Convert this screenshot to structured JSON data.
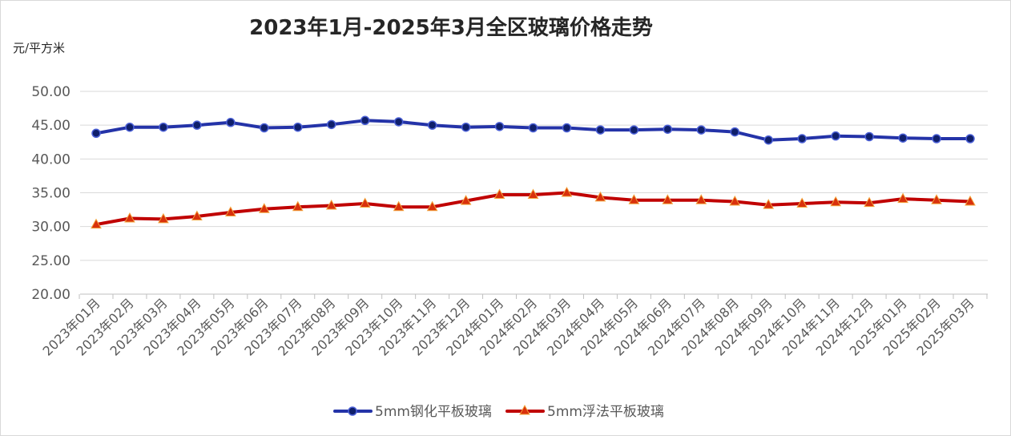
{
  "chart_data": {
    "type": "line",
    "title": "2023年1月-2025年3月全区玻璃价格走势",
    "ylabel": "元/平方米",
    "xlabel": "",
    "ylim": [
      20,
      50
    ],
    "yticks": [
      "20.00",
      "25.00",
      "30.00",
      "35.00",
      "40.00",
      "45.00",
      "50.00"
    ],
    "ytick_values": [
      20,
      25,
      30,
      35,
      40,
      45,
      50
    ],
    "grid": "horizontal",
    "legend": "bottom-center",
    "categories": [
      "2023年01月",
      "2023年02月",
      "2023年03月",
      "2023年04月",
      "2023年05月",
      "2023年06月",
      "2023年07月",
      "2023年08月",
      "2023年09月",
      "2023年10月",
      "2023年11月",
      "2023年12月",
      "2024年01月",
      "2024年02月",
      "2024年03月",
      "2024年04月",
      "2024年05月",
      "2024年06月",
      "2024年07月",
      "2024年08月",
      "2024年09月",
      "2024年10月",
      "2024年11月",
      "2024年12月",
      "2025年01月",
      "2025年02月",
      "2025年03月"
    ],
    "series": [
      {
        "name": "5mm钢化平板玻璃",
        "color": "#2433a8",
        "marker": "circle",
        "marker_fill": "#0f1f6b",
        "marker_stroke": "#4a5fd6",
        "values": [
          43.8,
          44.7,
          44.7,
          45.0,
          45.4,
          44.6,
          44.7,
          45.1,
          45.7,
          45.5,
          45.0,
          44.7,
          44.8,
          44.6,
          44.6,
          44.3,
          44.3,
          44.4,
          44.3,
          44.0,
          42.8,
          43.0,
          43.4,
          43.3,
          43.1,
          43.0,
          43.0
        ]
      },
      {
        "name": "5mm浮法平板玻璃",
        "color": "#c00000",
        "marker": "triangle",
        "marker_fill": "#d9310c",
        "marker_stroke": "#f2a33a",
        "values": [
          30.3,
          31.2,
          31.1,
          31.5,
          32.1,
          32.6,
          32.9,
          33.1,
          33.4,
          32.9,
          32.9,
          33.8,
          34.7,
          34.7,
          35.0,
          34.3,
          33.9,
          33.9,
          33.9,
          33.7,
          33.2,
          33.4,
          33.6,
          33.5,
          34.1,
          33.9,
          33.7
        ]
      }
    ]
  }
}
